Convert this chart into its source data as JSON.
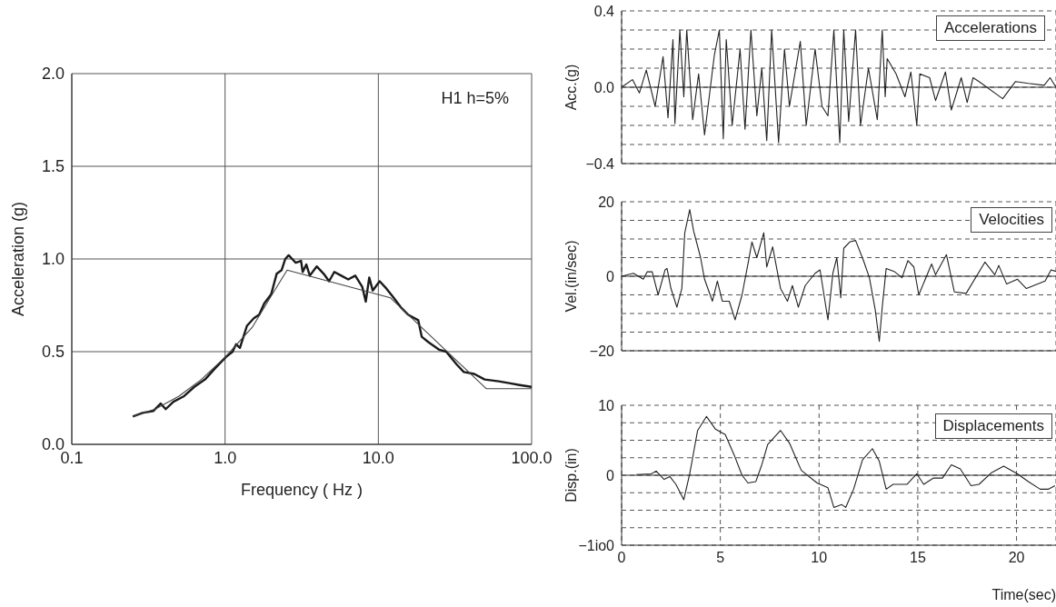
{
  "chart_data": [
    {
      "type": "line",
      "xlabel": "Frequency ( Hz )",
      "ylabel": "Acceleration (g)",
      "annotations": [
        "H1 h=5%"
      ],
      "log": "x",
      "grid": true,
      "xlim": [
        0.1,
        100
      ],
      "xticks": [
        0.1,
        {
          "value": 1,
          "label": "1.0"
        },
        {
          "value": 10,
          "label": "10.0"
        },
        {
          "value": 100,
          "label": "100.0"
        }
      ],
      "ylim": [
        0,
        2
      ],
      "yticks": [
        {
          "value": 0,
          "label": "0.0"
        },
        0.5,
        {
          "value": 1,
          "label": "1.0"
        },
        1.5,
        {
          "value": 2,
          "label": "2.0"
        }
      ],
      "series": [
        {
          "color": "#1a1a1a",
          "x": [
            0.25,
            0.29,
            0.34,
            0.38,
            0.41,
            0.46,
            0.54,
            0.63,
            0.74,
            0.86,
            1.01,
            1.12,
            1.18,
            1.25,
            1.39,
            1.54,
            1.67,
            1.8,
            2.0,
            2.17,
            2.34,
            2.47,
            2.6,
            2.74,
            2.89,
            3.13,
            3.21,
            3.39,
            3.57,
            3.96,
            4.4,
            4.77,
            5.16,
            5.73,
            6.36,
            7.07,
            7.85,
            8.28,
            8.72,
            9.19,
            10.2,
            11.3,
            12.6,
            14.0,
            15.6,
            18.2,
            19.2,
            21.3,
            25.0,
            27.7,
            32.5,
            36.1,
            42.2,
            49.4,
            61.0,
            71.4,
            83.6,
            100
          ],
          "values": [
            0.15,
            0.17,
            0.18,
            0.22,
            0.19,
            0.23,
            0.26,
            0.31,
            0.35,
            0.41,
            0.47,
            0.5,
            0.54,
            0.52,
            0.64,
            0.68,
            0.7,
            0.76,
            0.81,
            0.92,
            0.94,
            1.0,
            1.02,
            1.0,
            0.98,
            0.99,
            0.93,
            0.97,
            0.91,
            0.96,
            0.92,
            0.88,
            0.93,
            0.91,
            0.89,
            0.91,
            0.85,
            0.77,
            0.9,
            0.83,
            0.88,
            0.84,
            0.79,
            0.74,
            0.7,
            0.67,
            0.58,
            0.55,
            0.51,
            0.5,
            0.43,
            0.39,
            0.38,
            0.35,
            0.34,
            0.33,
            0.32,
            0.31
          ]
        },
        {
          "color": "#444444",
          "x": [
            0.25,
            0.35,
            0.5,
            0.7,
            1.0,
            1.5,
            2.0,
            2.54,
            12.0,
            50.7,
            100
          ],
          "values": [
            0.15,
            0.19,
            0.26,
            0.35,
            0.47,
            0.63,
            0.8,
            0.94,
            0.79,
            0.3,
            0.3
          ]
        }
      ]
    },
    {
      "type": "line",
      "title": "Accelerations",
      "ylabel": "Acc.(g)",
      "grid": true,
      "tick_labels": "y",
      "xlim": [
        0,
        22
      ],
      "xticks": [
        0,
        5,
        10,
        15,
        20
      ],
      "ylim": [
        -0.4,
        0.4
      ],
      "yticks": [
        {
          "value": -0.4,
          "label": "−0.4"
        },
        {
          "value": -0.3,
          "label": null
        },
        {
          "value": -0.2,
          "label": null
        },
        {
          "value": -0.1,
          "label": null
        },
        {
          "value": 0,
          "label": "0.0"
        },
        {
          "value": 0.1,
          "label": null
        },
        {
          "value": 0.2,
          "label": null
        },
        {
          "value": 0.3,
          "label": null
        },
        0.4
      ],
      "ref_lines": [
        {
          "axis": "y",
          "value": 0,
          "color": "#333333"
        }
      ],
      "series": [
        {
          "color": "#222222",
          "x": [
            0,
            0.55,
            0.9,
            1.25,
            1.7,
            2.1,
            2.35,
            2.6,
            2.7,
            2.95,
            3.15,
            3.3,
            3.6,
            3.9,
            4.2,
            4.7,
            4.95,
            5.15,
            5.3,
            5.6,
            6.0,
            6.25,
            6.55,
            6.85,
            7.1,
            7.35,
            7.6,
            7.95,
            8.25,
            8.5,
            9.05,
            9.35,
            9.8,
            10.15,
            10.45,
            10.75,
            11.05,
            11.25,
            11.5,
            11.85,
            12.1,
            12.5,
            12.95,
            13.2,
            13.35,
            13.45,
            13.9,
            14.35,
            14.65,
            14.95,
            15.1,
            15.6,
            15.9,
            16.4,
            16.7,
            17.2,
            17.5,
            17.8,
            18.1,
            19.3,
            19.95,
            20.6,
            21.4,
            21.7,
            22.0
          ],
          "values": [
            0,
            0.04,
            -0.03,
            0.09,
            -0.1,
            0.16,
            -0.16,
            0.25,
            -0.19,
            0.3,
            -0.05,
            0.3,
            -0.17,
            0.07,
            -0.25,
            0.17,
            0.3,
            -0.27,
            0.25,
            -0.2,
            0.2,
            -0.22,
            0.3,
            -0.15,
            0.1,
            -0.28,
            0.3,
            -0.29,
            0.2,
            -0.1,
            0.24,
            -0.2,
            0.2,
            -0.1,
            -0.15,
            0.3,
            -0.29,
            0.3,
            -0.18,
            0.3,
            -0.2,
            0.1,
            -0.17,
            0.3,
            -0.05,
            0.15,
            0.07,
            -0.05,
            0.08,
            -0.2,
            0.07,
            0.05,
            -0.07,
            0.08,
            -0.12,
            0.05,
            -0.08,
            0.05,
            0.03,
            -0.06,
            0.03,
            0.02,
            0.01,
            0.05,
            0
          ]
        }
      ]
    },
    {
      "type": "line",
      "title": "Velocities",
      "ylabel": "Vel.(in/sec)",
      "grid": true,
      "tick_labels": "y",
      "xlim": [
        0,
        22
      ],
      "xticks": [
        0,
        5,
        10,
        15,
        20
      ],
      "ylim": [
        -20,
        20
      ],
      "yticks": [
        {
          "value": -20,
          "label": "−20"
        },
        {
          "value": -15,
          "label": null
        },
        {
          "value": -10,
          "label": null
        },
        {
          "value": -5,
          "label": null
        },
        0,
        {
          "value": 5,
          "label": null
        },
        {
          "value": 10,
          "label": null
        },
        {
          "value": 15,
          "label": null
        },
        20
      ],
      "ref_lines": [
        {
          "axis": "y",
          "value": 0,
          "color": "#333333"
        }
      ],
      "series": [
        {
          "color": "#222222",
          "x": [
            0,
            0.6,
            1.1,
            1.3,
            1.55,
            1.85,
            2.2,
            2.3,
            2.5,
            2.8,
            3.05,
            3.2,
            3.45,
            3.65,
            4.0,
            4.2,
            4.6,
            4.85,
            5.1,
            5.45,
            5.75,
            6.1,
            6.4,
            6.6,
            6.85,
            7.2,
            7.35,
            7.65,
            8.05,
            8.4,
            8.65,
            8.95,
            9.3,
            9.8,
            10.05,
            10.45,
            10.7,
            10.9,
            11.1,
            11.25,
            11.55,
            11.85,
            12.25,
            12.55,
            12.85,
            13.05,
            13.2,
            13.4,
            13.8,
            14.2,
            14.5,
            14.8,
            15.05,
            15.7,
            15.9,
            16.45,
            16.85,
            17.45,
            18.4,
            18.9,
            19.1,
            19.5,
            20.05,
            20.5,
            21.45,
            21.75,
            22.0
          ],
          "values": [
            0,
            0.8,
            -0.8,
            1.2,
            1.2,
            -5,
            1.7,
            2.1,
            -3.3,
            -8.3,
            -3.3,
            11.7,
            17.9,
            12.1,
            5,
            -0.8,
            -6.7,
            -1.3,
            -6.7,
            -6.7,
            -11.7,
            -5,
            3.3,
            9.2,
            5,
            11.7,
            2.5,
            7.9,
            -3.3,
            -6.7,
            -2.5,
            -8.3,
            -2.5,
            0.8,
            1.7,
            -11.7,
            0.8,
            5,
            -5.8,
            7.5,
            9.2,
            9.6,
            4.2,
            -0.4,
            -9.2,
            -17.5,
            -8.3,
            2.1,
            1.3,
            -0.4,
            4.2,
            2.5,
            -5,
            3.3,
            0.4,
            5.8,
            -4.2,
            -4.6,
            3.8,
            0.4,
            2.9,
            -2.1,
            -0.8,
            -3.3,
            -1.3,
            1.7,
            1.3
          ]
        }
      ]
    },
    {
      "type": "line",
      "title": "Displacements",
      "ylabel": "Disp.(in)",
      "xlabel": "Time(sec)",
      "grid": true,
      "xlim": [
        0,
        22
      ],
      "xticks": [
        0,
        5,
        10,
        15,
        20
      ],
      "ylim": [
        -10,
        10
      ],
      "yticks": [
        {
          "value": -10,
          "label": "−1io0"
        },
        {
          "value": -7.5,
          "label": null
        },
        {
          "value": -5,
          "label": null
        },
        {
          "value": -2.5,
          "label": null
        },
        0,
        {
          "value": 2.5,
          "label": null
        },
        {
          "value": 5,
          "label": null
        },
        {
          "value": 7.5,
          "label": null
        },
        10
      ],
      "ref_lines": [
        {
          "axis": "y",
          "value": 0,
          "color": "#333333"
        }
      ],
      "series": [
        {
          "color": "#222222",
          "x": [
            0.75,
            1.5,
            1.75,
            2.15,
            2.45,
            2.75,
            3.15,
            3.45,
            3.85,
            4.3,
            4.75,
            5.25,
            5.7,
            6.1,
            6.4,
            6.8,
            7.1,
            7.4,
            8.05,
            8.5,
            9.1,
            9.9,
            10.45,
            10.75,
            11.15,
            11.35,
            11.75,
            12.2,
            12.7,
            13.05,
            13.4,
            13.75,
            14.45,
            14.95,
            15.3,
            15.8,
            16.25,
            16.7,
            17.15,
            17.7,
            18.1,
            18.75,
            19.35,
            20.05,
            20.6,
            21.2,
            21.6,
            21.95
          ],
          "values": [
            0.1,
            0.2,
            0.6,
            -0.6,
            -0.2,
            -1.3,
            -3.5,
            0.2,
            6.4,
            8.4,
            6.6,
            5.8,
            2.9,
            0,
            -1.1,
            -0.9,
            1.5,
            4.4,
            6.4,
            4.6,
            0.7,
            -1.1,
            -1.8,
            -4.6,
            -4.2,
            -4.6,
            -2,
            2.2,
            3.8,
            2,
            -2,
            -1.3,
            -1.3,
            0.2,
            -1.3,
            -0.4,
            -0.4,
            1.5,
            0.9,
            -1.5,
            -1.3,
            0.4,
            1.3,
            0.2,
            -0.9,
            -2,
            -2,
            -1.5
          ]
        }
      ]
    }
  ]
}
